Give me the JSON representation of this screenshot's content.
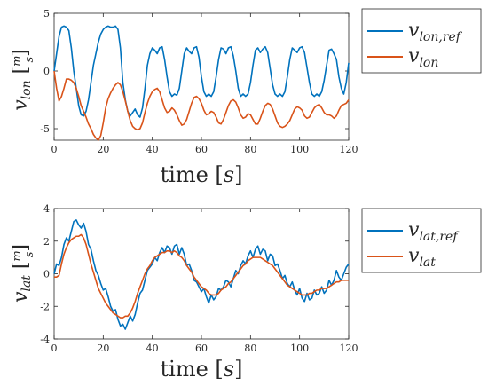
{
  "chart_data": [
    {
      "type": "line",
      "xlabel": "time [s]",
      "ylabel": "v_lon [m/s]",
      "xlim": [
        0,
        120
      ],
      "ylim": [
        -6,
        5
      ],
      "xticks": [
        "0",
        "20",
        "40",
        "60",
        "80",
        "100",
        "120"
      ],
      "yticks": [
        "5",
        "0",
        "-5"
      ],
      "legend": "outside-right",
      "series": [
        {
          "name": "v_lon,ref",
          "color": "#0072BD",
          "x": [
            0,
            1,
            2,
            3,
            4,
            5,
            6,
            7,
            8,
            9,
            10,
            11,
            12,
            13,
            14,
            15,
            16,
            17,
            18,
            19,
            20,
            21,
            22,
            23,
            24,
            25,
            26,
            27,
            28,
            29,
            30,
            31,
            32,
            33,
            34,
            35,
            36,
            37,
            38,
            39,
            40,
            41,
            42,
            43,
            44,
            45,
            46,
            47,
            48,
            49,
            50,
            51,
            52,
            53,
            54,
            55,
            56,
            57,
            58,
            59,
            60,
            61,
            62,
            63,
            64,
            65,
            66,
            67,
            68,
            69,
            70,
            71,
            72,
            73,
            74,
            75,
            76,
            77,
            78,
            79,
            80,
            81,
            82,
            83,
            84,
            85,
            86,
            87,
            88,
            89,
            90,
            91,
            92,
            93,
            94,
            95,
            96,
            97,
            98,
            99,
            100,
            101,
            102,
            103,
            104,
            105,
            106,
            107,
            108,
            109,
            110,
            111,
            112,
            113,
            114,
            115,
            116,
            117,
            118,
            119,
            120
          ],
          "values": [
            0,
            1.5,
            3.0,
            3.8,
            3.9,
            3.8,
            3.5,
            2.0,
            0,
            -1.5,
            -3.0,
            -3.8,
            -3.9,
            -3.5,
            -2.5,
            -1.0,
            0.5,
            1.5,
            2.5,
            3.2,
            3.6,
            3.8,
            3.9,
            3.8,
            3.8,
            3.9,
            3.6,
            2.0,
            -1.0,
            -2.5,
            -3.5,
            -3.9,
            -3.6,
            -3.3,
            -3.8,
            -4.0,
            -3.2,
            -1.5,
            0.5,
            1.5,
            2.0,
            1.8,
            1.5,
            2.0,
            2.1,
            1.0,
            -0.5,
            -1.8,
            -2.2,
            -2.0,
            -2.1,
            -1.5,
            0.0,
            1.5,
            2.0,
            1.7,
            1.5,
            2.0,
            2.1,
            1.2,
            -0.5,
            -1.8,
            -2.2,
            -2.0,
            -2.2,
            -1.8,
            -0.5,
            1.0,
            2.0,
            1.9,
            1.5,
            2.0,
            2.1,
            1.3,
            0.0,
            -1.5,
            -2.2,
            -2.0,
            -2.2,
            -2.0,
            -1.0,
            0.5,
            1.8,
            2.0,
            1.6,
            1.9,
            2.1,
            1.6,
            0.2,
            -1.2,
            -2.0,
            -2.2,
            -2.0,
            -2.2,
            -1.8,
            -0.5,
            1.0,
            2.0,
            1.8,
            1.6,
            2.0,
            2.1,
            1.6,
            0.3,
            -1.0,
            -2.0,
            -2.2,
            -2.0,
            -2.2,
            -1.8,
            -0.8,
            0.5,
            1.8,
            1.9,
            1.5,
            1.0,
            -0.5,
            -1.5,
            -2.0,
            -1.0,
            0.7
          ]
        },
        {
          "name": "v_lon",
          "color": "#D95319",
          "x": [
            0,
            1,
            2,
            3,
            4,
            5,
            6,
            7,
            8,
            9,
            10,
            11,
            12,
            13,
            14,
            15,
            16,
            17,
            18,
            19,
            20,
            21,
            22,
            23,
            24,
            25,
            26,
            27,
            28,
            29,
            30,
            31,
            32,
            33,
            34,
            35,
            36,
            37,
            38,
            39,
            40,
            41,
            42,
            43,
            44,
            45,
            46,
            47,
            48,
            49,
            50,
            51,
            52,
            53,
            54,
            55,
            56,
            57,
            58,
            59,
            60,
            61,
            62,
            63,
            64,
            65,
            66,
            67,
            68,
            69,
            70,
            71,
            72,
            73,
            74,
            75,
            76,
            77,
            78,
            79,
            80,
            81,
            82,
            83,
            84,
            85,
            86,
            87,
            88,
            89,
            90,
            91,
            92,
            93,
            94,
            95,
            96,
            97,
            98,
            99,
            100,
            101,
            102,
            103,
            104,
            105,
            106,
            107,
            108,
            109,
            110,
            111,
            112,
            113,
            114,
            115,
            116,
            117,
            118,
            119,
            120
          ],
          "values": [
            0,
            -1.5,
            -2.6,
            -2.2,
            -1.5,
            -0.7,
            -0.7,
            -0.8,
            -1.0,
            -1.5,
            -2.2,
            -3.0,
            -3.5,
            -4.0,
            -4.6,
            -5.0,
            -5.5,
            -5.8,
            -6.0,
            -5.6,
            -4.5,
            -3.2,
            -2.4,
            -1.9,
            -1.5,
            -1.2,
            -1.0,
            -1.2,
            -1.8,
            -2.6,
            -3.5,
            -4.3,
            -4.8,
            -5.0,
            -5.1,
            -5.0,
            -4.5,
            -3.6,
            -2.8,
            -2.2,
            -1.8,
            -1.6,
            -1.5,
            -1.8,
            -2.5,
            -3.2,
            -3.6,
            -3.5,
            -3.2,
            -3.4,
            -3.8,
            -4.3,
            -4.7,
            -4.6,
            -4.2,
            -3.5,
            -2.8,
            -2.3,
            -2.2,
            -2.4,
            -2.8,
            -3.4,
            -3.8,
            -3.7,
            -3.5,
            -3.6,
            -4.0,
            -4.5,
            -4.6,
            -4.2,
            -3.6,
            -3.0,
            -2.6,
            -2.5,
            -2.7,
            -3.2,
            -3.8,
            -4.1,
            -4.0,
            -3.7,
            -3.8,
            -4.2,
            -4.6,
            -4.6,
            -4.1,
            -3.5,
            -3.0,
            -2.8,
            -2.9,
            -3.3,
            -3.9,
            -4.5,
            -4.8,
            -4.9,
            -4.8,
            -4.6,
            -4.3,
            -3.8,
            -3.3,
            -3.1,
            -3.2,
            -3.4,
            -3.9,
            -4.1,
            -4.0,
            -3.6,
            -3.2,
            -3.0,
            -2.9,
            -3.2,
            -3.6,
            -3.8,
            -3.8,
            -3.9,
            -4.1,
            -3.9,
            -3.4,
            -3.0,
            -2.9,
            -2.8,
            -2.5
          ]
        }
      ]
    },
    {
      "type": "line",
      "xlabel": "time [s]",
      "ylabel": "v_lat [m/s]",
      "xlim": [
        0,
        120
      ],
      "ylim": [
        -4,
        4
      ],
      "xticks": [
        "0",
        "20",
        "40",
        "60",
        "80",
        "100",
        "120"
      ],
      "yticks": [
        "4",
        "2",
        "0",
        "-2",
        "-4"
      ],
      "legend": "outside-right",
      "series": [
        {
          "name": "v_lat,ref",
          "color": "#0072BD",
          "x": [
            0,
            1,
            2,
            3,
            4,
            5,
            6,
            7,
            8,
            9,
            10,
            11,
            12,
            13,
            14,
            15,
            16,
            17,
            18,
            19,
            20,
            21,
            22,
            23,
            24,
            25,
            26,
            27,
            28,
            29,
            30,
            31,
            32,
            33,
            34,
            35,
            36,
            37,
            38,
            39,
            40,
            41,
            42,
            43,
            44,
            45,
            46,
            47,
            48,
            49,
            50,
            51,
            52,
            53,
            54,
            55,
            56,
            57,
            58,
            59,
            60,
            61,
            62,
            63,
            64,
            65,
            66,
            67,
            68,
            69,
            70,
            71,
            72,
            73,
            74,
            75,
            76,
            77,
            78,
            79,
            80,
            81,
            82,
            83,
            84,
            85,
            86,
            87,
            88,
            89,
            90,
            91,
            92,
            93,
            94,
            95,
            96,
            97,
            98,
            99,
            100,
            101,
            102,
            103,
            104,
            105,
            106,
            107,
            108,
            109,
            110,
            111,
            112,
            113,
            114,
            115,
            116,
            117,
            118,
            119,
            120
          ],
          "values": [
            0.0,
            0.6,
            0.5,
            1.0,
            1.8,
            2.2,
            2.0,
            2.6,
            3.2,
            3.3,
            3.0,
            2.8,
            3.1,
            2.6,
            1.8,
            1.5,
            0.8,
            0.2,
            -0.1,
            -0.6,
            -1.0,
            -0.9,
            -1.4,
            -2.0,
            -2.3,
            -2.2,
            -2.8,
            -3.2,
            -3.1,
            -3.4,
            -3.0,
            -2.6,
            -2.9,
            -2.5,
            -1.8,
            -1.2,
            -1.0,
            -0.4,
            0.2,
            0.4,
            0.6,
            1.0,
            0.8,
            1.3,
            1.6,
            1.3,
            1.7,
            1.6,
            1.2,
            1.7,
            1.8,
            1.2,
            1.6,
            1.2,
            0.5,
            0.6,
            0.2,
            -0.4,
            -0.5,
            -0.8,
            -1.1,
            -0.9,
            -1.4,
            -1.8,
            -1.3,
            -1.6,
            -1.4,
            -0.9,
            -1.0,
            -0.8,
            -0.4,
            -0.5,
            -0.8,
            -0.3,
            0.2,
            0.0,
            0.5,
            0.8,
            0.6,
            1.1,
            1.4,
            1.0,
            1.5,
            1.7,
            1.2,
            1.5,
            1.4,
            0.8,
            1.2,
            1.1,
            0.5,
            0.6,
            0.2,
            -0.3,
            -0.1,
            -0.6,
            -0.8,
            -0.5,
            -1.0,
            -1.3,
            -0.9,
            -1.5,
            -1.7,
            -1.2,
            -1.6,
            -1.5,
            -1.0,
            -1.3,
            -1.2,
            -0.8,
            -1.2,
            -1.0,
            -0.4,
            -0.7,
            -0.4,
            0.2,
            -0.2,
            -0.4,
            0.0,
            0.4,
            0.6
          ]
        },
        {
          "name": "v_lat",
          "color": "#D95319",
          "x": [
            0,
            1,
            2,
            3,
            4,
            5,
            6,
            7,
            8,
            9,
            10,
            11,
            12,
            13,
            14,
            15,
            16,
            17,
            18,
            19,
            20,
            21,
            22,
            23,
            24,
            25,
            26,
            27,
            28,
            29,
            30,
            31,
            32,
            33,
            34,
            35,
            36,
            37,
            38,
            39,
            40,
            41,
            42,
            43,
            44,
            45,
            46,
            47,
            48,
            49,
            50,
            51,
            52,
            53,
            54,
            55,
            56,
            57,
            58,
            59,
            60,
            61,
            62,
            63,
            64,
            65,
            66,
            67,
            68,
            69,
            70,
            71,
            72,
            73,
            74,
            75,
            76,
            77,
            78,
            79,
            80,
            81,
            82,
            83,
            84,
            85,
            86,
            87,
            88,
            89,
            90,
            91,
            92,
            93,
            94,
            95,
            96,
            97,
            98,
            99,
            100,
            101,
            102,
            103,
            104,
            105,
            106,
            107,
            108,
            109,
            110,
            111,
            112,
            113,
            114,
            115,
            116,
            117,
            118,
            119,
            120
          ],
          "values": [
            -0.2,
            -0.2,
            -0.1,
            0.6,
            1.2,
            1.6,
            1.9,
            2.1,
            2.2,
            2.3,
            2.3,
            2.4,
            2.2,
            1.8,
            1.2,
            0.6,
            0.1,
            -0.4,
            -0.9,
            -1.2,
            -1.5,
            -1.8,
            -2.0,
            -2.2,
            -2.4,
            -2.5,
            -2.6,
            -2.7,
            -2.7,
            -2.6,
            -2.6,
            -2.4,
            -2.1,
            -1.7,
            -1.2,
            -0.8,
            -0.4,
            0.0,
            0.3,
            0.5,
            0.8,
            1.0,
            1.1,
            1.2,
            1.3,
            1.3,
            1.4,
            1.4,
            1.3,
            1.4,
            1.3,
            1.1,
            1.0,
            0.8,
            0.5,
            0.3,
            0.1,
            -0.2,
            -0.4,
            -0.6,
            -0.8,
            -0.9,
            -1.0,
            -1.2,
            -1.3,
            -1.3,
            -1.3,
            -1.2,
            -1.0,
            -0.9,
            -0.8,
            -0.6,
            -0.5,
            -0.3,
            -0.1,
            0.1,
            0.3,
            0.5,
            0.6,
            0.8,
            0.9,
            1.0,
            1.0,
            1.0,
            1.0,
            0.9,
            0.8,
            0.7,
            0.6,
            0.5,
            0.3,
            0.1,
            -0.1,
            -0.3,
            -0.5,
            -0.7,
            -0.8,
            -0.9,
            -1.0,
            -1.1,
            -1.2,
            -1.3,
            -1.3,
            -1.3,
            -1.2,
            -1.2,
            -1.1,
            -1.0,
            -1.0,
            -0.9,
            -0.9,
            -0.9,
            -0.8,
            -0.7,
            -0.6,
            -0.5,
            -0.5,
            -0.4,
            -0.4,
            -0.4,
            -0.4
          ]
        }
      ]
    }
  ]
}
